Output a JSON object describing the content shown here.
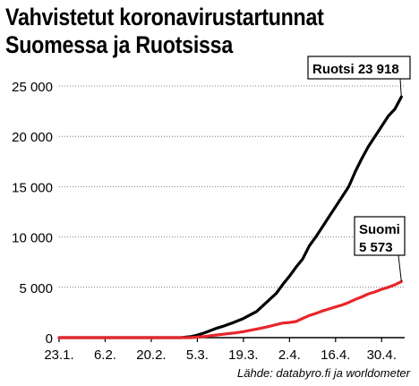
{
  "chart_data": {
    "type": "line",
    "title": [
      "Vahvistetut koronavirustartunnat",
      "Suomessa ja Ruotsissa"
    ],
    "source": "Lähde: databyro.fi ja worldometer",
    "x_tick_labels": [
      "23.1.",
      "6.2.",
      "20.2.",
      "5.3.",
      "19.3.",
      "2.4.",
      "16.4.",
      "30.4."
    ],
    "x_tick_days": [
      0,
      14,
      28,
      42,
      56,
      70,
      84,
      98
    ],
    "x_range_days": [
      0,
      105
    ],
    "ylim": [
      0,
      25000
    ],
    "y_ticks": [
      0,
      5000,
      10000,
      15000,
      20000,
      25000
    ],
    "y_tick_labels": [
      "0",
      "5 000",
      "10 000",
      "15 000",
      "20 000",
      "25 000"
    ],
    "grid": "horizontal",
    "series": [
      {
        "name": "Ruotsi",
        "color": "#000000",
        "callout": [
          "Ruotsi 23 918"
        ],
        "x": [
          0,
          37,
          40,
          42,
          44,
          46,
          48,
          50,
          53,
          56,
          60,
          63,
          66,
          68,
          70,
          72,
          74,
          76,
          78,
          80,
          82,
          84,
          86,
          88,
          90,
          92,
          94,
          96,
          98,
          100,
          102,
          104
        ],
        "y": [
          0,
          0,
          100,
          250,
          450,
          700,
          950,
          1150,
          1500,
          1900,
          2600,
          3500,
          4400,
          5300,
          6100,
          7000,
          7800,
          9100,
          10000,
          11000,
          12000,
          13000,
          14000,
          15000,
          16500,
          17800,
          19000,
          20000,
          21000,
          22000,
          22700,
          23918
        ]
      },
      {
        "name": "Suomi",
        "color": "#e8262b",
        "callout": [
          "Suomi",
          "5 573"
        ],
        "x": [
          0,
          40,
          42,
          44,
          46,
          50,
          53,
          56,
          60,
          63,
          66,
          68,
          70,
          72,
          74,
          76,
          78,
          80,
          82,
          84,
          86,
          88,
          90,
          92,
          94,
          96,
          98,
          100,
          102,
          104
        ],
        "y": [
          0,
          0,
          50,
          100,
          200,
          350,
          450,
          600,
          850,
          1050,
          1300,
          1450,
          1500,
          1600,
          1900,
          2200,
          2400,
          2650,
          2850,
          3050,
          3250,
          3500,
          3800,
          4050,
          4350,
          4550,
          4800,
          5000,
          5250,
          5573
        ]
      }
    ]
  }
}
